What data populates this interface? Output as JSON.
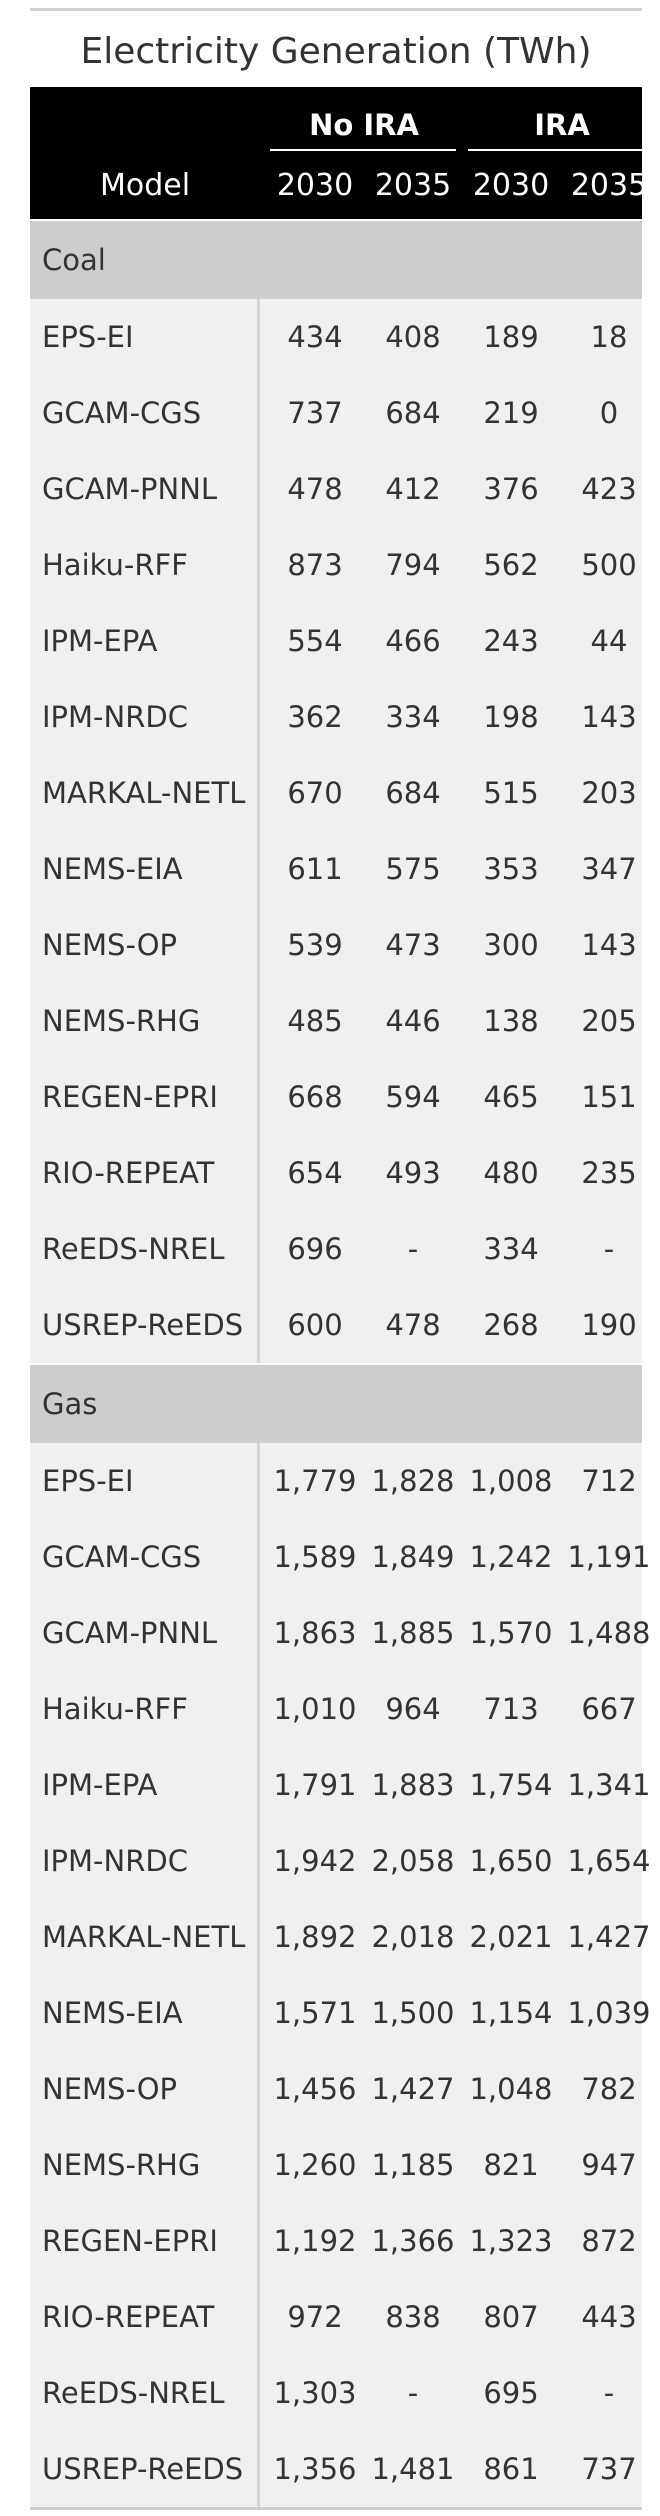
{
  "table": {
    "title": "Electricity Generation (TWh)",
    "header": {
      "model_label": "Model",
      "groups": [
        "No IRA",
        "IRA"
      ],
      "years": [
        "2030",
        "2035",
        "2030",
        "2035"
      ]
    },
    "sections": [
      {
        "name": "Coal",
        "rows": [
          {
            "model": "EPS-EI",
            "values": [
              "434",
              "408",
              "189",
              "18"
            ]
          },
          {
            "model": "GCAM-CGS",
            "values": [
              "737",
              "684",
              "219",
              "0"
            ]
          },
          {
            "model": "GCAM-PNNL",
            "values": [
              "478",
              "412",
              "376",
              "423"
            ]
          },
          {
            "model": "Haiku-RFF",
            "values": [
              "873",
              "794",
              "562",
              "500"
            ]
          },
          {
            "model": "IPM-EPA",
            "values": [
              "554",
              "466",
              "243",
              "44"
            ]
          },
          {
            "model": "IPM-NRDC",
            "values": [
              "362",
              "334",
              "198",
              "143"
            ]
          },
          {
            "model": "MARKAL-NETL",
            "values": [
              "670",
              "684",
              "515",
              "203"
            ]
          },
          {
            "model": "NEMS-EIA",
            "values": [
              "611",
              "575",
              "353",
              "347"
            ]
          },
          {
            "model": "NEMS-OP",
            "values": [
              "539",
              "473",
              "300",
              "143"
            ]
          },
          {
            "model": "NEMS-RHG",
            "values": [
              "485",
              "446",
              "138",
              "205"
            ]
          },
          {
            "model": "REGEN-EPRI",
            "values": [
              "668",
              "594",
              "465",
              "151"
            ]
          },
          {
            "model": "RIO-REPEAT",
            "values": [
              "654",
              "493",
              "480",
              "235"
            ]
          },
          {
            "model": "ReEDS-NREL",
            "values": [
              "696",
              "-",
              "334",
              "-"
            ]
          },
          {
            "model": "USREP-ReEDS",
            "values": [
              "600",
              "478",
              "268",
              "190"
            ]
          }
        ]
      },
      {
        "name": "Gas",
        "rows": [
          {
            "model": "EPS-EI",
            "values": [
              "1,779",
              "1,828",
              "1,008",
              "712"
            ]
          },
          {
            "model": "GCAM-CGS",
            "values": [
              "1,589",
              "1,849",
              "1,242",
              "1,191"
            ]
          },
          {
            "model": "GCAM-PNNL",
            "values": [
              "1,863",
              "1,885",
              "1,570",
              "1,488"
            ]
          },
          {
            "model": "Haiku-RFF",
            "values": [
              "1,010",
              "964",
              "713",
              "667"
            ]
          },
          {
            "model": "IPM-EPA",
            "values": [
              "1,791",
              "1,883",
              "1,754",
              "1,341"
            ]
          },
          {
            "model": "IPM-NRDC",
            "values": [
              "1,942",
              "2,058",
              "1,650",
              "1,654"
            ]
          },
          {
            "model": "MARKAL-NETL",
            "values": [
              "1,892",
              "2,018",
              "2,021",
              "1,427"
            ]
          },
          {
            "model": "NEMS-EIA",
            "values": [
              "1,571",
              "1,500",
              "1,154",
              "1,039"
            ]
          },
          {
            "model": "NEMS-OP",
            "values": [
              "1,456",
              "1,427",
              "1,048",
              "782"
            ]
          },
          {
            "model": "NEMS-RHG",
            "values": [
              "1,260",
              "1,185",
              "821",
              "947"
            ]
          },
          {
            "model": "REGEN-EPRI",
            "values": [
              "1,192",
              "1,366",
              "1,323",
              "872"
            ]
          },
          {
            "model": "RIO-REPEAT",
            "values": [
              "972",
              "838",
              "807",
              "443"
            ]
          },
          {
            "model": "ReEDS-NREL",
            "values": [
              "1,303",
              "-",
              "695",
              "-"
            ]
          },
          {
            "model": "USREP-ReEDS",
            "values": [
              "1,356",
              "1,481",
              "861",
              "737"
            ]
          }
        ]
      }
    ]
  }
}
